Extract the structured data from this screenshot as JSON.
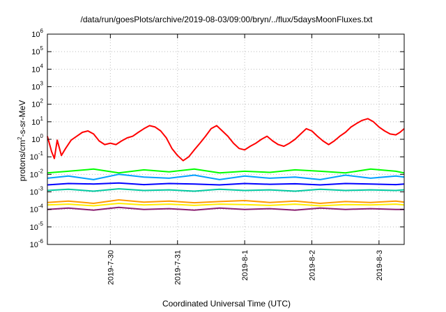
{
  "chart_data": {
    "type": "line",
    "title": "/data/run/goesPlots/archive/2019-08-03/09:00/bryn/../flux/5daysMoonFluxes.txt",
    "xlabel": "Coordinated Universal Time (UTC)",
    "ylabel": "protons/cm2-s-sr-MeV",
    "ylabel_parts": {
      "pre": "protons/cm",
      "sup": "2",
      "post": "-s-sr-MeV"
    },
    "xlim": [
      "2019-07-29T01:30",
      "2019-08-03T09:00"
    ],
    "ylim": [
      1e-06,
      1000000.0
    ],
    "yscale": "log",
    "grid": true,
    "xticks": [
      {
        "date": "2019-07-30T00:00",
        "label": "2019-7-30"
      },
      {
        "date": "2019-07-31T00:00",
        "label": "2019-7-31"
      },
      {
        "date": "2019-08-01T00:00",
        "label": "2019-8-1"
      },
      {
        "date": "2019-08-02T00:00",
        "label": "2019-8-2"
      },
      {
        "date": "2019-08-03T00:00",
        "label": "2019-8-3"
      }
    ],
    "yticks": [
      {
        "value": 1e-06,
        "base": "10",
        "exp": "-6"
      },
      {
        "value": 1e-05,
        "base": "10",
        "exp": "-5"
      },
      {
        "value": 0.0001,
        "base": "10",
        "exp": "-4"
      },
      {
        "value": 0.001,
        "base": "10",
        "exp": "-3"
      },
      {
        "value": 0.01,
        "base": "10",
        "exp": "-2"
      },
      {
        "value": 0.1,
        "base": "10",
        "exp": "-1"
      },
      {
        "value": 1,
        "base": "10",
        "exp": "0"
      },
      {
        "value": 10,
        "base": "10",
        "exp": "1"
      },
      {
        "value": 100,
        "base": "10",
        "exp": "2"
      },
      {
        "value": 1000,
        "base": "10",
        "exp": "3"
      },
      {
        "value": 10000,
        "base": "10",
        "exp": "4"
      },
      {
        "value": 100000,
        "base": "10",
        "exp": "5"
      },
      {
        "value": 1000000,
        "base": "10",
        "exp": "6"
      }
    ],
    "series": [
      {
        "color": "#ff0000",
        "width": 2,
        "x": [
          "2019-07-29T01:30",
          "2019-07-29T03:00",
          "2019-07-29T04:00",
          "2019-07-29T05:00",
          "2019-07-29T06:30",
          "2019-07-29T08:00",
          "2019-07-29T10:00",
          "2019-07-29T12:00",
          "2019-07-29T14:00",
          "2019-07-29T16:00",
          "2019-07-29T18:00",
          "2019-07-29T20:00",
          "2019-07-29T22:00",
          "2019-07-30T00:00",
          "2019-07-30T02:00",
          "2019-07-30T04:00",
          "2019-07-30T06:00",
          "2019-07-30T08:00",
          "2019-07-30T10:00",
          "2019-07-30T12:00",
          "2019-07-30T14:00",
          "2019-07-30T16:00",
          "2019-07-30T18:00",
          "2019-07-30T20:00",
          "2019-07-30T22:00",
          "2019-07-31T00:00",
          "2019-07-31T02:00",
          "2019-07-31T04:00",
          "2019-07-31T06:00",
          "2019-07-31T08:00",
          "2019-07-31T10:00",
          "2019-07-31T12:00",
          "2019-07-31T14:00",
          "2019-07-31T16:00",
          "2019-07-31T18:00",
          "2019-07-31T20:00",
          "2019-07-31T22:00",
          "2019-08-01T00:00",
          "2019-08-01T02:00",
          "2019-08-01T04:00",
          "2019-08-01T06:00",
          "2019-08-01T08:00",
          "2019-08-01T10:00",
          "2019-08-01T12:00",
          "2019-08-01T14:00",
          "2019-08-01T16:00",
          "2019-08-01T18:00",
          "2019-08-01T20:00",
          "2019-08-01T22:00",
          "2019-08-02T00:00",
          "2019-08-02T02:00",
          "2019-08-02T04:00",
          "2019-08-02T06:00",
          "2019-08-02T08:00",
          "2019-08-02T10:00",
          "2019-08-02T12:00",
          "2019-08-02T14:00",
          "2019-08-02T16:00",
          "2019-08-02T18:00",
          "2019-08-02T20:00",
          "2019-08-02T22:00",
          "2019-08-03T00:00",
          "2019-08-03T02:00",
          "2019-08-03T04:00",
          "2019-08-03T06:00",
          "2019-08-03T07:30",
          "2019-08-03T09:00"
        ],
        "y": [
          1.5,
          0.2,
          0.08,
          0.9,
          0.12,
          0.3,
          0.9,
          1.5,
          2.5,
          3,
          2,
          0.8,
          0.5,
          0.6,
          0.5,
          0.8,
          1.2,
          1.5,
          2.5,
          4,
          6,
          5,
          3,
          1.2,
          0.3,
          0.12,
          0.06,
          0.1,
          0.25,
          0.6,
          1.5,
          4,
          6,
          3,
          1.5,
          0.6,
          0.3,
          0.25,
          0.4,
          0.6,
          1,
          1.5,
          0.8,
          0.5,
          0.4,
          0.6,
          1,
          2,
          4,
          3,
          1.5,
          0.8,
          0.5,
          0.8,
          1.5,
          2.5,
          5,
          8,
          12,
          15,
          10,
          5,
          3,
          2,
          1.8,
          2.5,
          4
        ]
      },
      {
        "color": "#00ff00",
        "width": 2,
        "x": [
          "2019-07-29T01:30",
          "2019-07-29T09:00",
          "2019-07-29T18:00",
          "2019-07-30T03:00",
          "2019-07-30T12:00",
          "2019-07-30T21:00",
          "2019-07-31T06:00",
          "2019-07-31T15:00",
          "2019-08-01T00:00",
          "2019-08-01T09:00",
          "2019-08-01T18:00",
          "2019-08-02T03:00",
          "2019-08-02T12:00",
          "2019-08-02T21:00",
          "2019-08-03T06:00",
          "2019-08-03T09:00"
        ],
        "y": [
          0.012,
          0.015,
          0.02,
          0.012,
          0.018,
          0.014,
          0.02,
          0.012,
          0.015,
          0.013,
          0.018,
          0.015,
          0.012,
          0.02,
          0.015,
          0.012
        ]
      },
      {
        "color": "#00a0ff",
        "width": 2,
        "x": [
          "2019-07-29T01:30",
          "2019-07-29T09:00",
          "2019-07-29T18:00",
          "2019-07-30T03:00",
          "2019-07-30T12:00",
          "2019-07-30T21:00",
          "2019-07-31T06:00",
          "2019-07-31T15:00",
          "2019-08-01T00:00",
          "2019-08-01T09:00",
          "2019-08-01T18:00",
          "2019-08-02T03:00",
          "2019-08-02T12:00",
          "2019-08-02T21:00",
          "2019-08-03T06:00",
          "2019-08-03T09:00"
        ],
        "y": [
          0.006,
          0.008,
          0.005,
          0.01,
          0.007,
          0.006,
          0.009,
          0.005,
          0.008,
          0.006,
          0.007,
          0.005,
          0.009,
          0.006,
          0.008,
          0.007
        ]
      },
      {
        "color": "#0000ff",
        "width": 2,
        "x": [
          "2019-07-29T01:30",
          "2019-07-29T09:00",
          "2019-07-29T18:00",
          "2019-07-30T03:00",
          "2019-07-30T12:00",
          "2019-07-30T21:00",
          "2019-07-31T06:00",
          "2019-07-31T15:00",
          "2019-08-01T00:00",
          "2019-08-01T09:00",
          "2019-08-01T18:00",
          "2019-08-02T03:00",
          "2019-08-02T12:00",
          "2019-08-02T21:00",
          "2019-08-03T06:00",
          "2019-08-03T09:00"
        ],
        "y": [
          0.0025,
          0.003,
          0.0028,
          0.0032,
          0.0026,
          0.003,
          0.0028,
          0.0025,
          0.003,
          0.0027,
          0.0029,
          0.0025,
          0.003,
          0.0028,
          0.0026,
          0.0028
        ]
      },
      {
        "color": "#00c8a0",
        "width": 2,
        "x": [
          "2019-07-29T01:30",
          "2019-07-29T09:00",
          "2019-07-29T18:00",
          "2019-07-30T03:00",
          "2019-07-30T12:00",
          "2019-07-30T21:00",
          "2019-07-31T06:00",
          "2019-07-31T15:00",
          "2019-08-01T00:00",
          "2019-08-01T09:00",
          "2019-08-01T18:00",
          "2019-08-02T03:00",
          "2019-08-02T12:00",
          "2019-08-02T21:00",
          "2019-08-03T06:00",
          "2019-08-03T09:00"
        ],
        "y": [
          0.0012,
          0.0014,
          0.0011,
          0.0015,
          0.0012,
          0.0013,
          0.0011,
          0.0014,
          0.0012,
          0.0013,
          0.0011,
          0.0014,
          0.0012,
          0.0013,
          0.0012,
          0.0013
        ]
      },
      {
        "color": "#ff9a00",
        "width": 2,
        "x": [
          "2019-07-29T01:30",
          "2019-07-29T09:00",
          "2019-07-29T18:00",
          "2019-07-30T03:00",
          "2019-07-30T12:00",
          "2019-07-30T21:00",
          "2019-07-31T06:00",
          "2019-07-31T15:00",
          "2019-08-01T00:00",
          "2019-08-01T09:00",
          "2019-08-01T18:00",
          "2019-08-02T03:00",
          "2019-08-02T12:00",
          "2019-08-02T21:00",
          "2019-08-03T06:00",
          "2019-08-03T09:00"
        ],
        "y": [
          0.00025,
          0.0003,
          0.00022,
          0.00035,
          0.00026,
          0.0003,
          0.00024,
          0.00028,
          0.00032,
          0.00025,
          0.0003,
          0.00022,
          0.00028,
          0.00025,
          0.0003,
          0.00026
        ]
      },
      {
        "color": "#ffee00",
        "width": 2,
        "x": [
          "2019-07-29T01:30",
          "2019-07-29T09:00",
          "2019-07-29T18:00",
          "2019-07-30T03:00",
          "2019-07-30T12:00",
          "2019-07-30T21:00",
          "2019-07-31T06:00",
          "2019-07-31T15:00",
          "2019-08-01T00:00",
          "2019-08-01T09:00",
          "2019-08-01T18:00",
          "2019-08-02T03:00",
          "2019-08-02T12:00",
          "2019-08-02T21:00",
          "2019-08-03T06:00",
          "2019-08-03T09:00"
        ],
        "y": [
          0.00018,
          0.0002,
          0.00016,
          0.00022,
          0.00018,
          0.0002,
          0.00017,
          0.0002,
          0.00019,
          0.00017,
          0.0002,
          0.00016,
          0.00019,
          0.00018,
          0.0002,
          0.00018
        ]
      },
      {
        "color": "#8b2070",
        "width": 2,
        "x": [
          "2019-07-29T01:30",
          "2019-07-29T09:00",
          "2019-07-29T18:00",
          "2019-07-30T03:00",
          "2019-07-30T12:00",
          "2019-07-30T21:00",
          "2019-07-31T06:00",
          "2019-07-31T15:00",
          "2019-08-01T00:00",
          "2019-08-01T09:00",
          "2019-08-01T18:00",
          "2019-08-02T03:00",
          "2019-08-02T12:00",
          "2019-08-02T21:00",
          "2019-08-03T06:00",
          "2019-08-03T09:00"
        ],
        "y": [
          0.0001,
          0.00012,
          9e-05,
          0.00013,
          0.0001,
          0.00011,
          9e-05,
          0.00012,
          0.0001,
          0.00011,
          9e-05,
          0.00012,
          0.0001,
          0.00011,
          0.0001,
          0.0001
        ]
      }
    ]
  }
}
